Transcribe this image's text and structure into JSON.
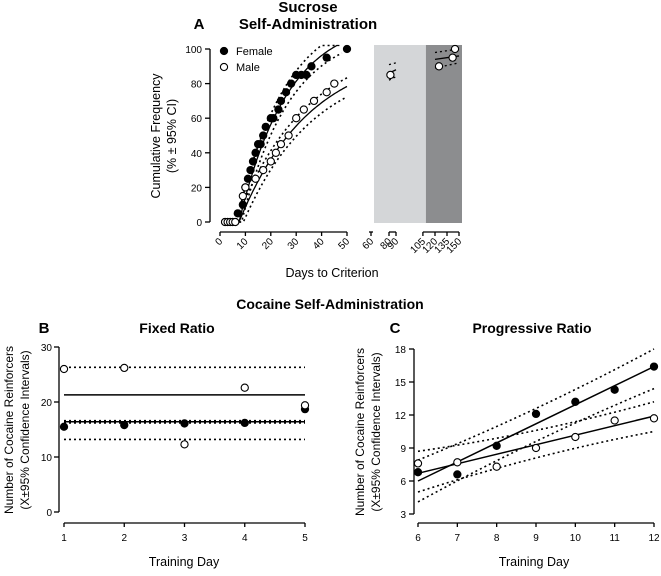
{
  "chart_data": [
    {
      "id": "A",
      "panel_letter": "A",
      "type": "scatter",
      "title_line1": "Sucrose",
      "title_line2": "Self-Administration",
      "xlabel": "Days to Criterion",
      "ylabel_line1": "Cumulative Frequency",
      "ylabel_line2": "(% ± 95% CI)",
      "ylim": [
        0,
        100
      ],
      "yticks": [
        "0",
        "20",
        "40",
        "60",
        "80",
        "100"
      ],
      "x_segments": [
        {
          "range": [
            0,
            50
          ],
          "ticks": [
            "0",
            "10",
            "20",
            "30",
            "40",
            "50"
          ]
        },
        {
          "range": [
            60,
            60
          ],
          "ticks": [
            "60"
          ]
        },
        {
          "range": [
            80,
            90
          ],
          "ticks": [
            "80",
            "90"
          ]
        },
        {
          "range": [
            105,
            150
          ],
          "ticks": [
            "105",
            "120",
            "135",
            "150"
          ]
        }
      ],
      "shaded_regions": [
        {
          "name": "light",
          "x_range": [
            60,
            105
          ],
          "color": "#d4d6d8"
        },
        {
          "name": "dark",
          "x_range": [
            105,
            150
          ],
          "color": "#8c8d8f"
        }
      ],
      "legend": [
        "Female",
        "Male"
      ],
      "series": [
        {
          "name": "Female",
          "marker": "filled",
          "points": [
            [
              2,
              0
            ],
            [
              3,
              0
            ],
            [
              4,
              0
            ],
            [
              5,
              0
            ],
            [
              6,
              0
            ],
            [
              7,
              5
            ],
            [
              9,
              10
            ],
            [
              10,
              20
            ],
            [
              11,
              25
            ],
            [
              12,
              30
            ],
            [
              13,
              35
            ],
            [
              14,
              40
            ],
            [
              15,
              45
            ],
            [
              16,
              45
            ],
            [
              17,
              50
            ],
            [
              18,
              55
            ],
            [
              20,
              60
            ],
            [
              21,
              60
            ],
            [
              23,
              65
            ],
            [
              24,
              70
            ],
            [
              26,
              75
            ],
            [
              28,
              80
            ],
            [
              30,
              85
            ],
            [
              32,
              85
            ],
            [
              34,
              85
            ],
            [
              36,
              90
            ],
            [
              42,
              95
            ],
            [
              50,
              100
            ]
          ]
        },
        {
          "name": "Male",
          "marker": "open",
          "points": [
            [
              2,
              0
            ],
            [
              3,
              0
            ],
            [
              4,
              0
            ],
            [
              5,
              0
            ],
            [
              6,
              0
            ],
            [
              9,
              15
            ],
            [
              10,
              20
            ],
            [
              14,
              25
            ],
            [
              17,
              30
            ],
            [
              20,
              35
            ],
            [
              22,
              40
            ],
            [
              24,
              45
            ],
            [
              27,
              50
            ],
            [
              30,
              60
            ],
            [
              33,
              65
            ],
            [
              37,
              70
            ],
            [
              42,
              75
            ],
            [
              45,
              80
            ],
            [
              82,
              85
            ],
            [
              125,
              90
            ],
            [
              142,
              95
            ],
            [
              145,
              100
            ]
          ]
        }
      ]
    },
    {
      "id": "B",
      "section_title": "Cocaine Self-Administration",
      "panel_letter": "B",
      "type": "scatter",
      "title": "Fixed Ratio",
      "xlabel": "Training  Day",
      "ylabel_line1": "Number of Cocaine Reinforcers",
      "ylabel_line2": "(X±95% Confidence Intervals)",
      "xlim": [
        1,
        5
      ],
      "ylim": [
        0,
        30
      ],
      "xticks": [
        "1",
        "2",
        "3",
        "4",
        "5"
      ],
      "yticks": [
        "0",
        "10",
        "20",
        "30"
      ],
      "series": [
        {
          "name": "Female",
          "marker": "filled",
          "x": [
            1,
            2,
            3,
            4,
            5
          ],
          "values": [
            15.5,
            15.8,
            16.1,
            16.2,
            18.7
          ],
          "fit_mean": 16.4,
          "ci": [
            16.2,
            16.6
          ]
        },
        {
          "name": "Male",
          "marker": "open",
          "x": [
            1,
            2,
            3,
            4,
            5
          ],
          "values": [
            26.0,
            26.2,
            12.3,
            22.6,
            19.4
          ],
          "fit_mean": 21.3,
          "ci": [
            13.2,
            26.3
          ]
        }
      ]
    },
    {
      "id": "C",
      "panel_letter": "C",
      "type": "scatter",
      "title": "Progressive Ratio",
      "xlabel": "Training  Day",
      "ylabel_line1": "Number of Cocaine Reinforcers",
      "ylabel_line2": "(X±95% Confidence Intervals)",
      "xlim": [
        6,
        12
      ],
      "ylim": [
        3,
        18
      ],
      "xticks": [
        "6",
        "7",
        "8",
        "9",
        "10",
        "11",
        "12"
      ],
      "yticks": [
        "3",
        "6",
        "9",
        "12",
        "15",
        "18"
      ],
      "series": [
        {
          "name": "Female",
          "marker": "filled",
          "x": [
            6,
            7,
            8,
            9,
            10,
            11,
            12
          ],
          "values": [
            6.8,
            6.6,
            9.2,
            12.1,
            13.2,
            14.3,
            16.4
          ],
          "fit": [
            6.0,
            16.4
          ],
          "ci_upper": [
            7.9,
            18.0
          ],
          "ci_lower": [
            4.1,
            14.4
          ]
        },
        {
          "name": "Male",
          "marker": "open",
          "x": [
            6,
            7,
            8,
            9,
            10,
            11,
            12
          ],
          "values": [
            7.6,
            7.7,
            7.3,
            9.0,
            10.0,
            11.5,
            11.7
          ],
          "fit": [
            6.7,
            11.9
          ],
          "ci_upper": [
            8.7,
            13.2
          ],
          "ci_lower": [
            5.0,
            10.5
          ]
        }
      ]
    }
  ]
}
